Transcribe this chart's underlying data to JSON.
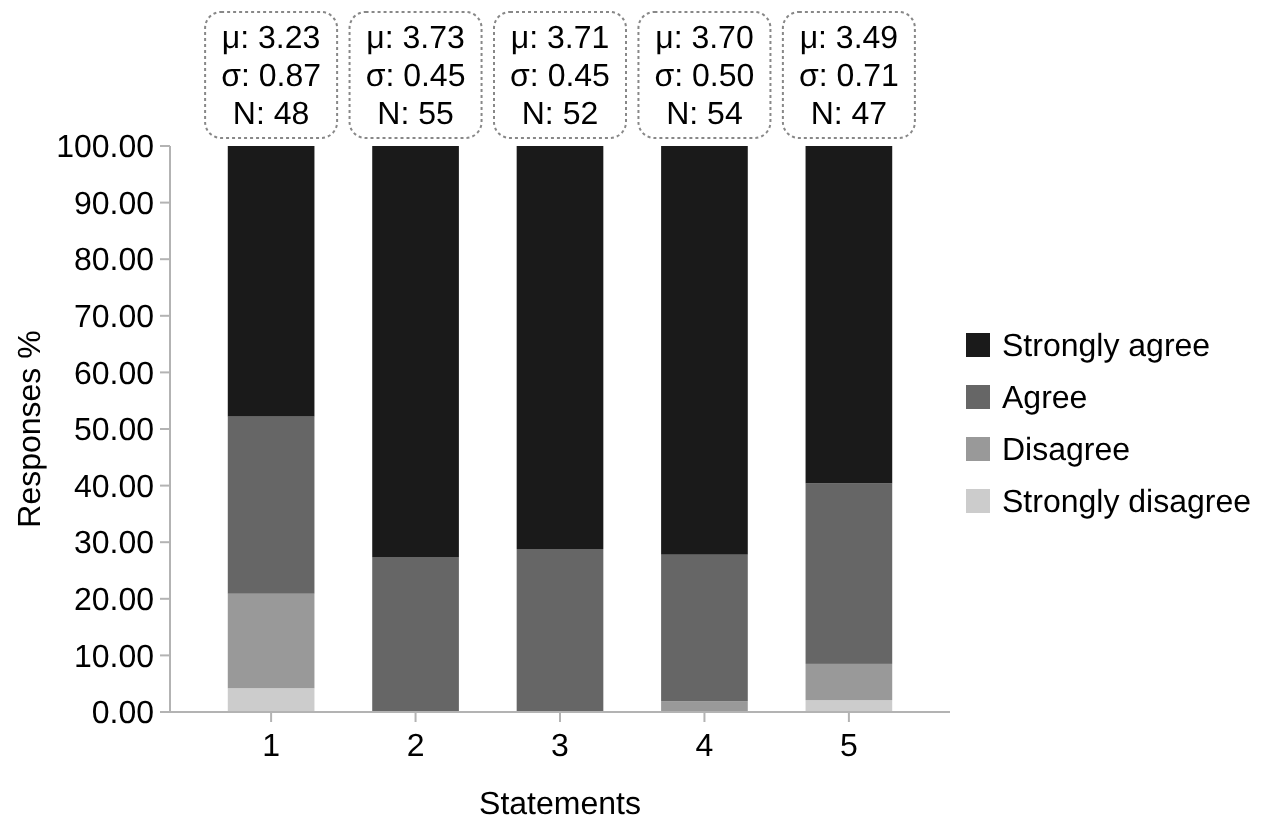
{
  "chart_data": {
    "type": "bar",
    "stacked": true,
    "xlabel": "Statements",
    "ylabel": "Responses %",
    "categories": [
      "1",
      "2",
      "3",
      "4",
      "5"
    ],
    "series": [
      {
        "name": "Strongly disagree",
        "color": "#cccccc",
        "values": [
          4.2,
          0,
          0,
          0,
          2.1
        ]
      },
      {
        "name": "Disagree",
        "color": "#999999",
        "values": [
          16.7,
          0,
          0,
          1.9,
          6.4
        ]
      },
      {
        "name": "Agree",
        "color": "#666666",
        "values": [
          31.3,
          27.3,
          28.8,
          25.9,
          31.9
        ]
      },
      {
        "name": "Strongly agree",
        "color": "#1a1a1a",
        "values": [
          47.8,
          72.7,
          71.2,
          72.2,
          59.6
        ]
      }
    ],
    "ylim": [
      0,
      100
    ],
    "yticks": [
      {
        "value": 0,
        "label": "0.00"
      },
      {
        "value": 10,
        "label": "10.00"
      },
      {
        "value": 20,
        "label": "20.00"
      },
      {
        "value": 30,
        "label": "30.00"
      },
      {
        "value": 40,
        "label": "40.00"
      },
      {
        "value": 50,
        "label": "50.00"
      },
      {
        "value": 60,
        "label": "60.00"
      },
      {
        "value": 70,
        "label": "70.00"
      },
      {
        "value": 80,
        "label": "80.00"
      },
      {
        "value": 90,
        "label": "90.00"
      },
      {
        "value": 100,
        "label": "100.00"
      }
    ],
    "grid": false,
    "legend": "right",
    "annotations": [
      "μ: 3.23\nσ: 0.87\nN: 48",
      "μ: 3.73\nσ: 0.45\nN: 55",
      "μ: 3.71\nσ: 0.45\nN: 52",
      "μ: 3.70\nσ: 0.50\nN: 54",
      "μ: 3.49\nσ: 0.71\nN: 47"
    ]
  }
}
